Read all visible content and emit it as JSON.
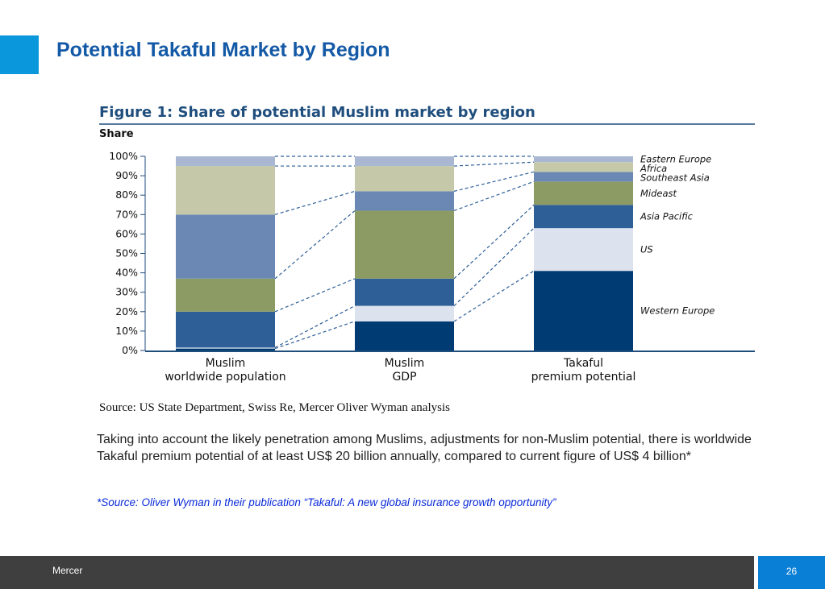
{
  "slide": {
    "title": "Potential Takaful Market by Region",
    "body_text": "Taking into account the likely penetration among Muslims, adjustments for non-Muslim potential, there is worldwide Takaful premium potential of at least US$ 20 billion annually, compared to current figure of US$ 4 billion*",
    "source_note": "*Source:  Oliver Wyman in their publication “Takaful: A new global insurance growth opportunity”",
    "footer_label": "Mercer",
    "page_number": "26",
    "colors": {
      "accent": "#0a97dc",
      "title": "#1359a6",
      "footer": "#3f3f3f",
      "page_box": "#0a7fd6",
      "note": "#0a2ad8"
    }
  },
  "chart_data": {
    "type": "bar",
    "stacked": true,
    "title": "Figure 1: Share of potential Muslim market by region",
    "ylabel": "Share",
    "ylim": [
      0,
      100
    ],
    "yticks": [
      "0%",
      "10%",
      "20%",
      "30%",
      "40%",
      "50%",
      "60%",
      "70%",
      "80%",
      "90%",
      "100%"
    ],
    "categories": [
      [
        "Muslim",
        "worldwide population"
      ],
      [
        "Muslim",
        "GDP"
      ],
      [
        "Takaful",
        "premium potential"
      ]
    ],
    "series": [
      {
        "name": "Western Europe",
        "color": "#003b73",
        "values": [
          1,
          15,
          41
        ]
      },
      {
        "name": "US",
        "color": "#dde2ef",
        "values": [
          0.5,
          8,
          22
        ]
      },
      {
        "name": "Asia Pacific",
        "color": "#2e5f97",
        "values": [
          18.5,
          14,
          12
        ]
      },
      {
        "name": "Mideast",
        "color": "#8c9a63",
        "values": [
          17,
          35,
          12
        ]
      },
      {
        "name": "Southeast Asia",
        "color": "#6b88b4",
        "values": [
          33,
          10,
          5
        ]
      },
      {
        "name": "Africa",
        "color": "#c5c9a9",
        "values": [
          25,
          13,
          5
        ]
      },
      {
        "name": "Eastern Europe",
        "color": "#aab7d3",
        "values": [
          5,
          5,
          3
        ]
      }
    ],
    "source": "Source: US State Department, Swiss Re, Mercer Oliver Wyman analysis",
    "grid": false,
    "legend": "right, inline labels"
  }
}
